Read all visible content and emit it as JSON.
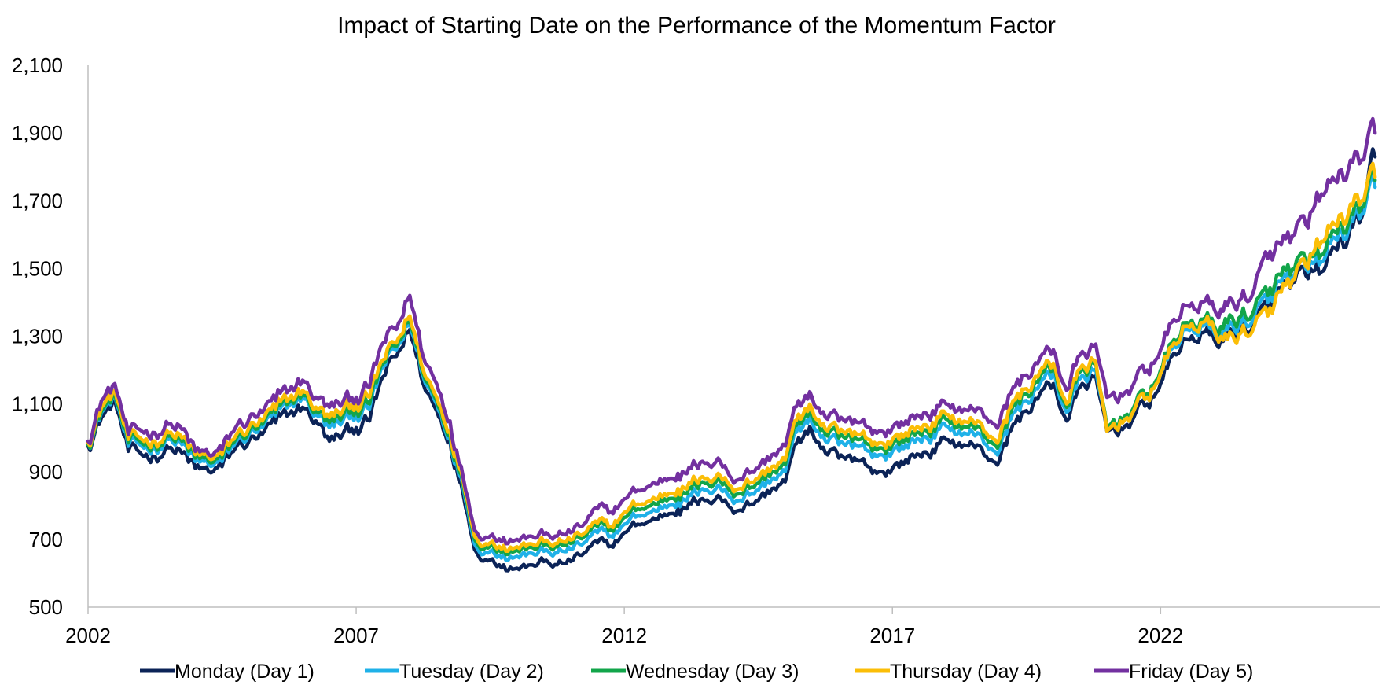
{
  "chart_data": {
    "type": "line",
    "title": "Impact of Starting Date on the Performance of the Momentum Factor",
    "xlabel": "",
    "ylabel": "",
    "ylim": [
      500,
      2100
    ],
    "yticks": [
      500,
      700,
      900,
      1100,
      1300,
      1500,
      1700,
      1900,
      2100
    ],
    "ytick_labels": [
      "500",
      "700",
      "900",
      "1,100",
      "1,300",
      "1,500",
      "1,700",
      "1,900",
      "2,100"
    ],
    "xlim": [
      2002,
      2026.1
    ],
    "xticks": [
      2002,
      2007,
      2012,
      2017,
      2022
    ],
    "xtick_labels": [
      "2002",
      "2007",
      "2012",
      "2017",
      "2022"
    ],
    "grid": false,
    "legend_position": "bottom",
    "colors": {
      "monday": "#0b2357",
      "tuesday": "#1fb1e8",
      "wednesday": "#12a54a",
      "thursday": "#fbbe07",
      "friday": "#7330a0"
    },
    "x": [
      2002.0,
      2002.25,
      2002.5,
      2002.75,
      2003.0,
      2003.25,
      2003.5,
      2003.75,
      2004.0,
      2004.25,
      2004.5,
      2004.75,
      2005.0,
      2005.25,
      2005.5,
      2005.75,
      2006.0,
      2006.25,
      2006.5,
      2006.75,
      2007.0,
      2007.25,
      2007.5,
      2007.75,
      2008.0,
      2008.25,
      2008.5,
      2008.75,
      2009.0,
      2009.25,
      2009.5,
      2009.75,
      2010.0,
      2010.25,
      2010.5,
      2010.75,
      2011.0,
      2011.25,
      2011.5,
      2011.75,
      2012.0,
      2012.25,
      2012.5,
      2012.75,
      2013.0,
      2013.25,
      2013.5,
      2013.75,
      2014.0,
      2014.25,
      2014.5,
      2014.75,
      2015.0,
      2015.25,
      2015.5,
      2015.75,
      2016.0,
      2016.25,
      2016.5,
      2016.75,
      2017.0,
      2017.25,
      2017.5,
      2017.75,
      2018.0,
      2018.25,
      2018.5,
      2018.75,
      2019.0,
      2019.25,
      2019.5,
      2019.75,
      2020.0,
      2020.25,
      2020.5,
      2020.75,
      2021.0,
      2021.25,
      2021.5,
      2021.75,
      2022.0,
      2022.25,
      2022.5,
      2022.75,
      2023.0,
      2023.25,
      2023.5,
      2023.75,
      2024.0,
      2024.25,
      2024.5,
      2024.75,
      2025.0,
      2025.25,
      2025.5,
      2025.75,
      2026.0
    ],
    "series": [
      {
        "name": "Monday (Day 1)",
        "key": "monday",
        "values": [
          975,
          1060,
          1110,
          960,
          950,
          945,
          970,
          955,
          910,
          900,
          915,
          970,
          990,
          1010,
          1045,
          1070,
          1090,
          1050,
          990,
          1010,
          1030,
          1050,
          1180,
          1240,
          1320,
          1160,
          1080,
          990,
          830,
          660,
          640,
          625,
          615,
          625,
          635,
          625,
          635,
          660,
          690,
          680,
          720,
          745,
          755,
          775,
          790,
          805,
          815,
          830,
          790,
          800,
          815,
          850,
          870,
          1000,
          1020,
          955,
          940,
          930,
          920,
          900,
          910,
          935,
          950,
          965,
          995,
          985,
          980,
          945,
          935,
          1040,
          1080,
          1130,
          1160,
          1050,
          1150,
          1180,
          1020,
          1030,
          1060,
          1100,
          1160,
          1250,
          1290,
          1310,
          1290,
          1300,
          1320,
          1340,
          1380,
          1440,
          1460,
          1470,
          1490,
          1560,
          1590,
          1650,
          1830
        ]
      },
      {
        "name": "Tuesday (Day 2)",
        "key": "tuesday",
        "values": [
          980,
          1075,
          1125,
          975,
          975,
          970,
          995,
          980,
          930,
          920,
          930,
          985,
          1010,
          1030,
          1065,
          1095,
          1120,
          1070,
          1030,
          1050,
          1070,
          1085,
          1210,
          1260,
          1340,
          1180,
          1100,
          1000,
          850,
          675,
          665,
          655,
          650,
          660,
          665,
          660,
          670,
          690,
          720,
          710,
          745,
          770,
          780,
          800,
          815,
          830,
          845,
          860,
          820,
          830,
          845,
          880,
          900,
          1035,
          1050,
          990,
          980,
          970,
          965,
          950,
          960,
          980,
          995,
          1010,
          1035,
          1020,
          1015,
          980,
          965,
          1075,
          1110,
          1160,
          1190,
          1075,
          1175,
          1200,
          1030,
          1050,
          1080,
          1120,
          1190,
          1270,
          1320,
          1330,
          1310,
          1320,
          1340,
          1360,
          1400,
          1460,
          1480,
          1490,
          1520,
          1590,
          1610,
          1660,
          1740
        ]
      },
      {
        "name": "Wednesday (Day 3)",
        "key": "wednesday",
        "values": [
          980,
          1080,
          1130,
          985,
          985,
          980,
          1005,
          990,
          940,
          930,
          940,
          995,
          1020,
          1040,
          1075,
          1105,
          1130,
          1080,
          1045,
          1065,
          1085,
          1100,
          1220,
          1270,
          1350,
          1190,
          1110,
          1010,
          860,
          690,
          680,
          672,
          668,
          677,
          683,
          678,
          688,
          708,
          738,
          728,
          765,
          790,
          800,
          820,
          835,
          850,
          865,
          880,
          840,
          850,
          865,
          900,
          920,
          1055,
          1070,
          1010,
          1000,
          990,
          985,
          970,
          980,
          1000,
          1015,
          1030,
          1055,
          1040,
          1035,
          1000,
          985,
          1095,
          1130,
          1180,
          1210,
          1090,
          1195,
          1220,
          1030,
          1060,
          1090,
          1130,
          1200,
          1290,
          1340,
          1350,
          1330,
          1340,
          1360,
          1380,
          1420,
          1480,
          1500,
          1510,
          1540,
          1610,
          1630,
          1680,
          1760
        ]
      },
      {
        "name": "Thursday (Day 4)",
        "key": "thursday",
        "values": [
          985,
          1090,
          1140,
          995,
          995,
          990,
          1015,
          1000,
          950,
          940,
          950,
          1005,
          1030,
          1050,
          1085,
          1115,
          1140,
          1090,
          1060,
          1080,
          1100,
          1120,
          1230,
          1280,
          1360,
          1200,
          1120,
          1020,
          870,
          700,
          690,
          682,
          678,
          687,
          693,
          688,
          698,
          718,
          748,
          738,
          780,
          805,
          815,
          835,
          850,
          865,
          880,
          895,
          855,
          865,
          880,
          915,
          935,
          1070,
          1085,
          1025,
          1015,
          1005,
          1000,
          985,
          995,
          1015,
          1030,
          1045,
          1070,
          1055,
          1050,
          1015,
          1000,
          1110,
          1145,
          1195,
          1220,
          1100,
          1205,
          1230,
          1020,
          1050,
          1080,
          1120,
          1190,
          1280,
          1330,
          1340,
          1320,
          1290,
          1310,
          1330,
          1360,
          1430,
          1470,
          1500,
          1580,
          1630,
          1660,
          1700,
          1770
        ]
      },
      {
        "name": "Friday (Day 5)",
        "key": "friday",
        "values": [
          990,
          1110,
          1160,
          1010,
          1020,
          1015,
          1040,
          1025,
          960,
          950,
          965,
          1030,
          1055,
          1075,
          1110,
          1140,
          1170,
          1120,
          1090,
          1105,
          1120,
          1150,
          1280,
          1320,
          1420,
          1240,
          1160,
          1050,
          880,
          720,
          710,
          705,
          700,
          710,
          715,
          710,
          720,
          745,
          790,
          780,
          820,
          845,
          860,
          880,
          895,
          910,
          925,
          940,
          880,
          895,
          910,
          950,
          975,
          1110,
          1120,
          1060,
          1050,
          1040,
          1035,
          1020,
          1030,
          1050,
          1065,
          1080,
          1100,
          1090,
          1085,
          1060,
          1045,
          1150,
          1185,
          1235,
          1260,
          1140,
          1245,
          1270,
          1120,
          1130,
          1160,
          1200,
          1260,
          1350,
          1390,
          1400,
          1380,
          1390,
          1410,
          1440,
          1530,
          1570,
          1600,
          1620,
          1720,
          1760,
          1790,
          1820,
          1900
        ]
      }
    ]
  }
}
